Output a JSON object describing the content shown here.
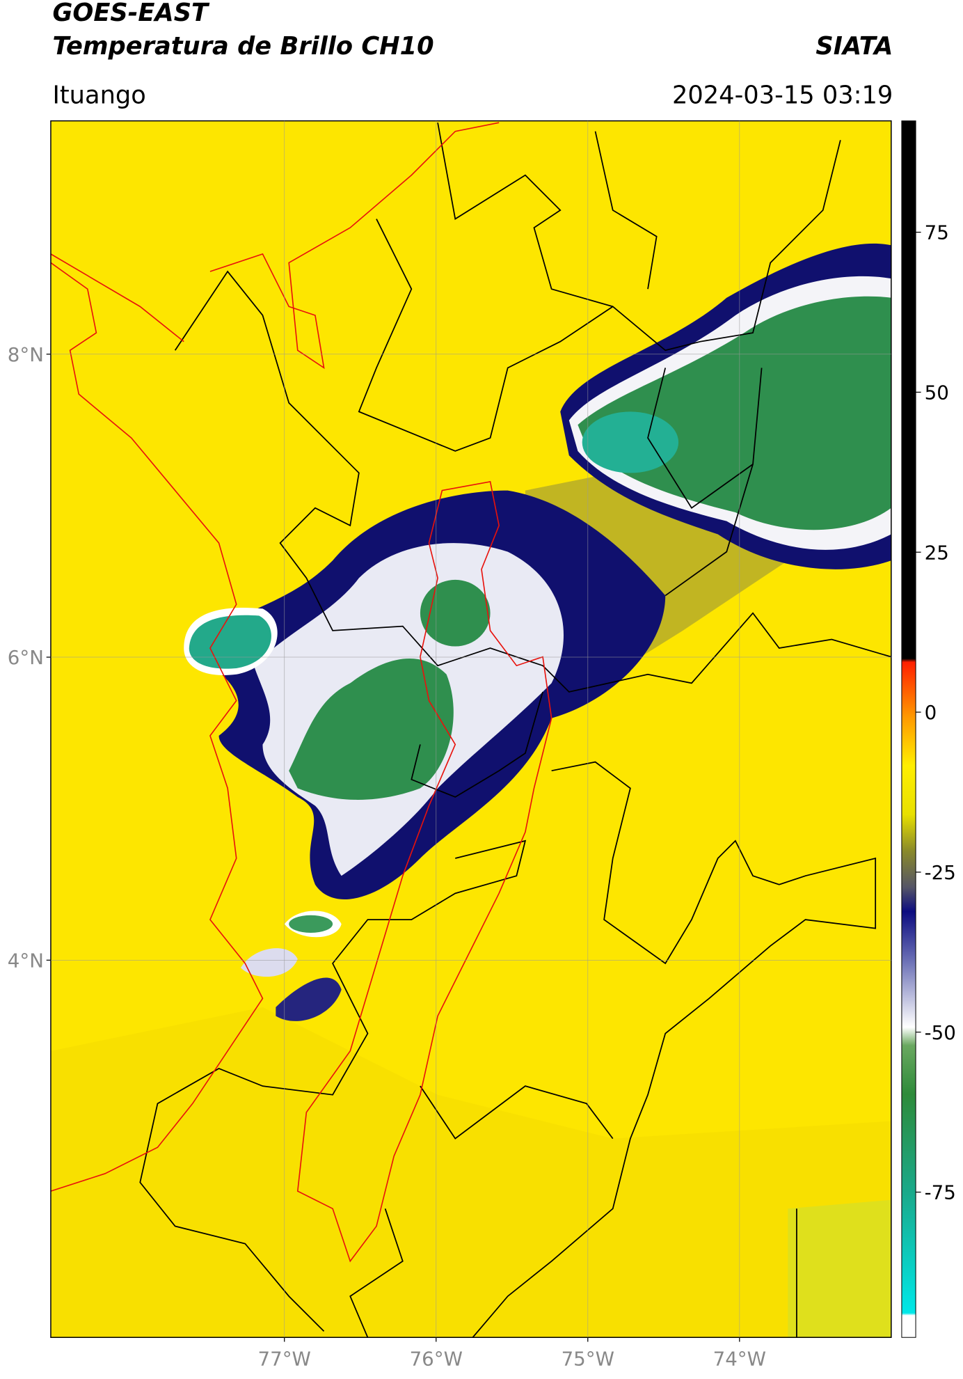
{
  "chart_data": {
    "type": "map",
    "title": "GOES-EAST",
    "subtitle": "Temperatura de Brillo CH10",
    "source": "SIATA",
    "region": "Ituango",
    "datetime": "2024-03-15 03:19",
    "xlim": [
      -78.54,
      -73.0
    ],
    "ylim": [
      1.51,
      9.54
    ],
    "xticks": [
      {
        "value": -77,
        "label": "77°W"
      },
      {
        "value": -76,
        "label": "76°W"
      },
      {
        "value": -75,
        "label": "75°W"
      },
      {
        "value": -74,
        "label": "74°W"
      }
    ],
    "yticks": [
      {
        "value": 4,
        "label": "4°N"
      },
      {
        "value": 6,
        "label": "6°N"
      },
      {
        "value": 8,
        "label": "8°N"
      }
    ],
    "grid": true,
    "colorbar": {
      "lim": [
        -97.7,
        92.4
      ],
      "ticks": [
        -75,
        -50,
        -25,
        0,
        25,
        50,
        75
      ]
    }
  }
}
